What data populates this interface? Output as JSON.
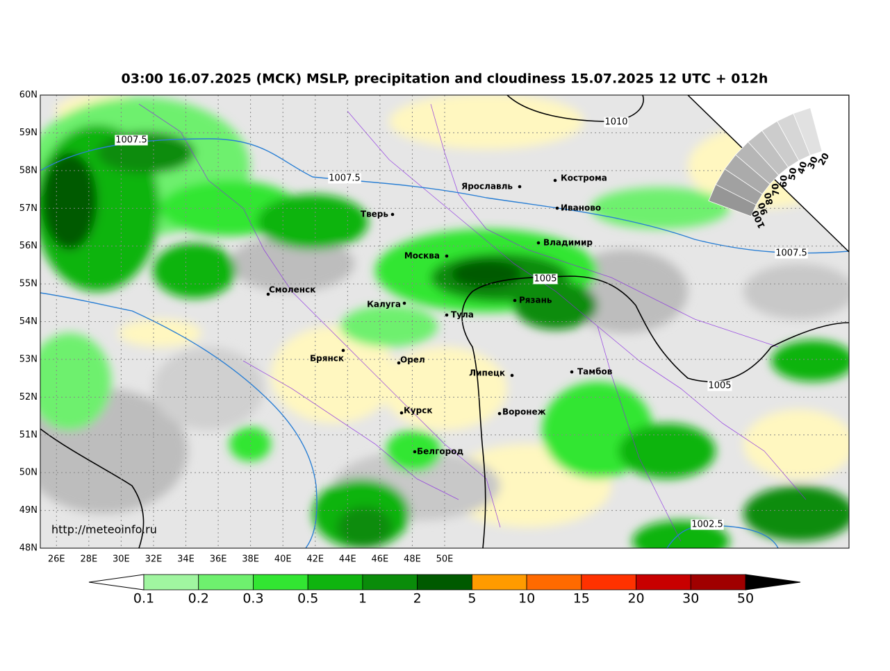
{
  "title": "03:00 16.07.2025 (МСК) MSLP, precipitation and cloudiness 15.07.2025 12 UTC + 012h",
  "lat_labels": [
    "60N",
    "59N",
    "58N",
    "57N",
    "56N",
    "55N",
    "54N",
    "53N",
    "52N",
    "51N",
    "50N",
    "49N",
    "48N"
  ],
  "lon_labels": [
    "26E",
    "28E",
    "30E",
    "32E",
    "34E",
    "36E",
    "38E",
    "40E",
    "42E",
    "44E",
    "46E",
    "48E",
    "50E"
  ],
  "cities": [
    "Ярославль",
    "Кострома",
    "Иваново",
    "Тверь",
    "Владимир",
    "Москва",
    "Смоленск",
    "Калуга",
    "Тула",
    "Рязань",
    "Брянск",
    "Орел",
    "Липецк",
    "Тамбов",
    "Курск",
    "Воронеж",
    "Белгород"
  ],
  "isobar_labels": [
    "1010",
    "1007.5",
    "1007.5",
    "1007.5",
    "1005",
    "1005",
    "1002.5"
  ],
  "cloud_scale": [
    "100",
    "90",
    "80",
    "70",
    "60",
    "50",
    "40",
    "30",
    "20"
  ],
  "colorbar_labels": [
    "0.1",
    "0.2",
    "0.3",
    "0.5",
    "1",
    "2",
    "5",
    "10",
    "15",
    "20",
    "30",
    "50"
  ],
  "source": "http://meteoinfo.ru"
}
